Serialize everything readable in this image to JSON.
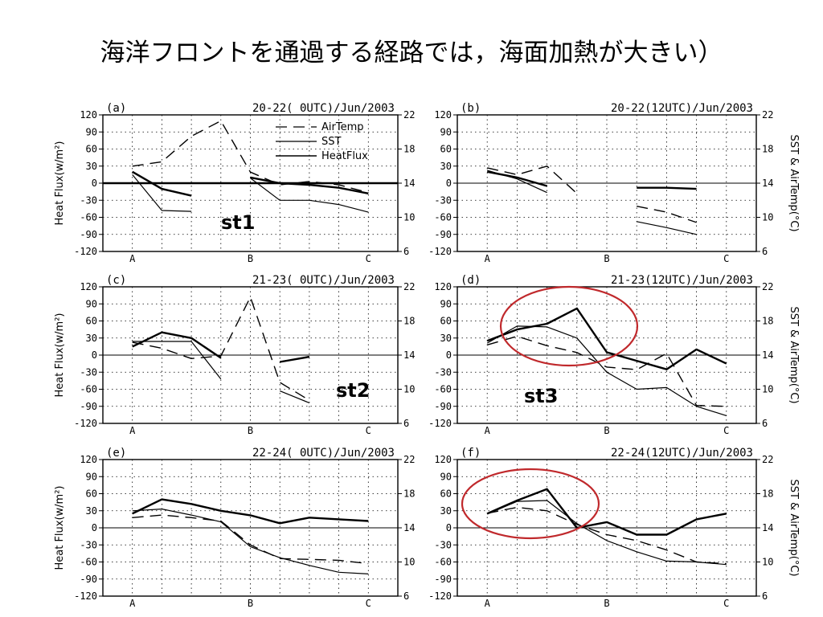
{
  "slide_title": "海洋フロントを通過する経路では，海面加熱が大きい）",
  "styles": {
    "ellipse_color": "#c0292c",
    "line_color": "#000000"
  },
  "figure": {
    "left_axis_title": "Heat Flux(w/m²)",
    "right_axis_title": "SST & AirTemp(°C)",
    "left_ticks": [
      -120,
      -90,
      -60,
      -30,
      0,
      30,
      60,
      90,
      120
    ],
    "right_ticks": [
      6,
      10,
      14,
      18,
      22
    ],
    "x_labels": [
      "A",
      "B",
      "C"
    ],
    "legend": [
      "AirTemp",
      "SST",
      "HeatFlux"
    ]
  },
  "chart_data": [
    {
      "type": "line",
      "panel": "(a)",
      "title": "20-22( 0UTC)/Jun/2003",
      "annotation": "st1",
      "y_left_lim": [
        -120,
        120
      ],
      "y_right_lim": [
        6,
        22
      ],
      "x": [
        0,
        1,
        2,
        3,
        4,
        5,
        6,
        7,
        8,
        9
      ],
      "series": [
        {
          "name": "AirTemp",
          "values": [
            16.0,
            16.5,
            19.5,
            21.3,
            15.3,
            13.8,
            14.2,
            13.8,
            12.9,
            null
          ]
        },
        {
          "name": "SST",
          "values": [
            15.0,
            10.8,
            10.7,
            null,
            14.6,
            12.0,
            12.0,
            11.5,
            10.6,
            null
          ]
        },
        {
          "name": "HeatFlux",
          "values": [
            20,
            -10,
            -22,
            null,
            10,
            0,
            -3,
            -8,
            -18,
            null
          ]
        }
      ]
    },
    {
      "type": "line",
      "panel": "(b)",
      "title": "20-22(12UTC)/Jun/2003",
      "annotation": "",
      "y_left_lim": [
        -120,
        120
      ],
      "y_right_lim": [
        6,
        22
      ],
      "x": [
        0,
        1,
        2,
        3,
        4,
        5,
        6,
        7,
        8,
        9
      ],
      "series": [
        {
          "name": "AirTemp",
          "values": [
            15.8,
            15.0,
            16.0,
            12.8,
            null,
            11.3,
            10.6,
            9.4,
            null,
            null
          ]
        },
        {
          "name": "SST",
          "values": [
            15.5,
            14.5,
            12.9,
            null,
            null,
            9.5,
            8.8,
            8.0,
            null,
            null
          ]
        },
        {
          "name": "HeatFlux",
          "values": [
            20,
            10,
            -5,
            null,
            null,
            -8,
            -8,
            -10,
            null,
            null
          ]
        }
      ]
    },
    {
      "type": "line",
      "panel": "(c)",
      "title": "21-23( 0UTC)/Jun/2003",
      "annotation": "st2",
      "y_left_lim": [
        -120,
        120
      ],
      "y_right_lim": [
        6,
        22
      ],
      "x": [
        0,
        1,
        2,
        3,
        4,
        5,
        6,
        7,
        8,
        9
      ],
      "series": [
        {
          "name": "AirTemp",
          "values": [
            15.5,
            14.8,
            13.6,
            13.9,
            20.8,
            10.8,
            8.7,
            null,
            null,
            null
          ]
        },
        {
          "name": "SST",
          "values": [
            15.6,
            15.6,
            15.6,
            11.2,
            null,
            9.8,
            8.4,
            null,
            null,
            null
          ]
        },
        {
          "name": "HeatFlux",
          "values": [
            15,
            40,
            30,
            -5,
            null,
            -12,
            -3,
            null,
            null,
            null
          ]
        }
      ]
    },
    {
      "type": "line",
      "panel": "(d)",
      "title": "21-23(12UTC)/Jun/2003",
      "annotation": "st3",
      "y_left_lim": [
        -120,
        120
      ],
      "y_right_lim": [
        6,
        22
      ],
      "x": [
        0,
        1,
        2,
        3,
        4,
        5,
        6,
        7,
        8,
        9
      ],
      "series": [
        {
          "name": "AirTemp",
          "values": [
            15.2,
            16.2,
            15.1,
            14.3,
            12.6,
            12.3,
            14.2,
            8.1,
            8.0,
            null
          ]
        },
        {
          "name": "SST",
          "values": [
            15.4,
            17.4,
            17.3,
            16.0,
            12.0,
            10.0,
            10.2,
            8.0,
            6.9,
            null
          ]
        },
        {
          "name": "HeatFlux",
          "values": [
            25,
            45,
            55,
            82,
            5,
            -10,
            -25,
            10,
            -15,
            null
          ]
        }
      ]
    },
    {
      "type": "line",
      "panel": "(e)",
      "title": "22-24( 0UTC)/Jun/2003",
      "annotation": "",
      "y_left_lim": [
        -120,
        120
      ],
      "y_right_lim": [
        6,
        22
      ],
      "x": [
        0,
        1,
        2,
        3,
        4,
        5,
        6,
        7,
        8,
        9
      ],
      "series": [
        {
          "name": "AirTemp",
          "values": [
            15.2,
            15.5,
            15.2,
            14.8,
            12.0,
            10.4,
            10.3,
            10.2,
            9.8,
            null
          ]
        },
        {
          "name": "SST",
          "values": [
            16.0,
            16.2,
            15.5,
            14.7,
            11.8,
            10.5,
            9.6,
            8.8,
            8.6,
            null
          ]
        },
        {
          "name": "HeatFlux",
          "values": [
            25,
            50,
            42,
            30,
            22,
            8,
            18,
            15,
            12,
            null
          ]
        }
      ]
    },
    {
      "type": "line",
      "panel": "(f)",
      "title": "22-24(12UTC)/Jun/2003",
      "annotation": "",
      "y_left_lim": [
        -120,
        120
      ],
      "y_right_lim": [
        6,
        22
      ],
      "x": [
        0,
        1,
        2,
        3,
        4,
        5,
        6,
        7,
        8,
        9
      ],
      "series": [
        {
          "name": "AirTemp",
          "values": [
            15.7,
            16.4,
            16.0,
            14.4,
            13.2,
            12.5,
            11.4,
            10.0,
            9.8,
            null
          ]
        },
        {
          "name": "SST",
          "values": [
            15.6,
            17.1,
            17.2,
            14.5,
            12.5,
            11.2,
            10.1,
            10.0,
            9.7,
            null
          ]
        },
        {
          "name": "HeatFlux",
          "values": [
            25,
            48,
            68,
            0,
            10,
            -12,
            -12,
            15,
            25,
            null
          ]
        }
      ]
    }
  ]
}
